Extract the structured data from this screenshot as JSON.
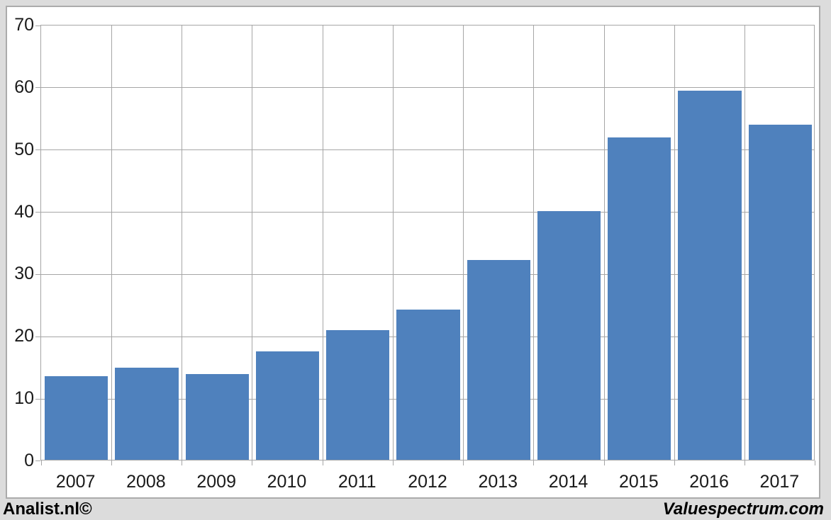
{
  "chart_data": {
    "type": "bar",
    "title": "",
    "xlabel": "",
    "ylabel": "",
    "categories": [
      "2007",
      "2008",
      "2009",
      "2010",
      "2011",
      "2012",
      "2013",
      "2014",
      "2015",
      "2016",
      "2017"
    ],
    "values": [
      13.4,
      14.8,
      13.8,
      17.4,
      20.8,
      24.1,
      32.1,
      39.9,
      51.8,
      59.3,
      53.8
    ],
    "ylim": [
      0,
      70
    ],
    "ytick_step": 10,
    "y_tick_labels": [
      "0",
      "10",
      "20",
      "30",
      "40",
      "50",
      "60",
      "70"
    ],
    "grid": true,
    "legend": "none",
    "bar_color": "#4f81bd",
    "gridline_color": "#a6a6a6",
    "plot_background": "#ffffff",
    "frame_background": "#dcdcdc"
  },
  "footer": {
    "left": "Analist.nl©",
    "right": "Valuespectrum.com"
  }
}
